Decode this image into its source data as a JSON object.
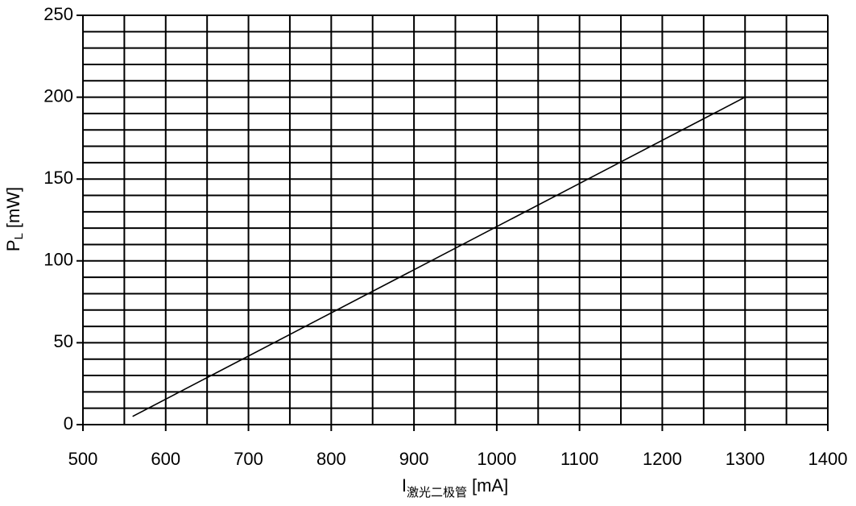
{
  "chart_data": {
    "type": "line",
    "x_label_symbol": "I",
    "x_label_subscript": "激光二极管",
    "x_label_unit": "[mA]",
    "y_label_symbol": "P",
    "y_label_subscript": "L",
    "y_label_unit": "[mW]",
    "x": [
      560,
      1300
    ],
    "series": [
      {
        "color": "#000000",
        "values": [
          5,
          200
        ]
      }
    ],
    "xlim": [
      500,
      1400
    ],
    "xticks": [
      500,
      600,
      700,
      800,
      900,
      1000,
      1100,
      1200,
      1300,
      1400
    ],
    "xminorticks": [
      550,
      650,
      750,
      850,
      950,
      1050,
      1150,
      1250,
      1350
    ],
    "ylim": [
      0,
      250
    ],
    "yticks": [
      0,
      50,
      100,
      150,
      200,
      250
    ],
    "yminorticks": [
      10,
      20,
      30,
      40,
      60,
      70,
      80,
      90,
      110,
      120,
      130,
      140,
      160,
      170,
      180,
      190,
      210,
      220,
      230,
      240
    ],
    "grid": true
  }
}
